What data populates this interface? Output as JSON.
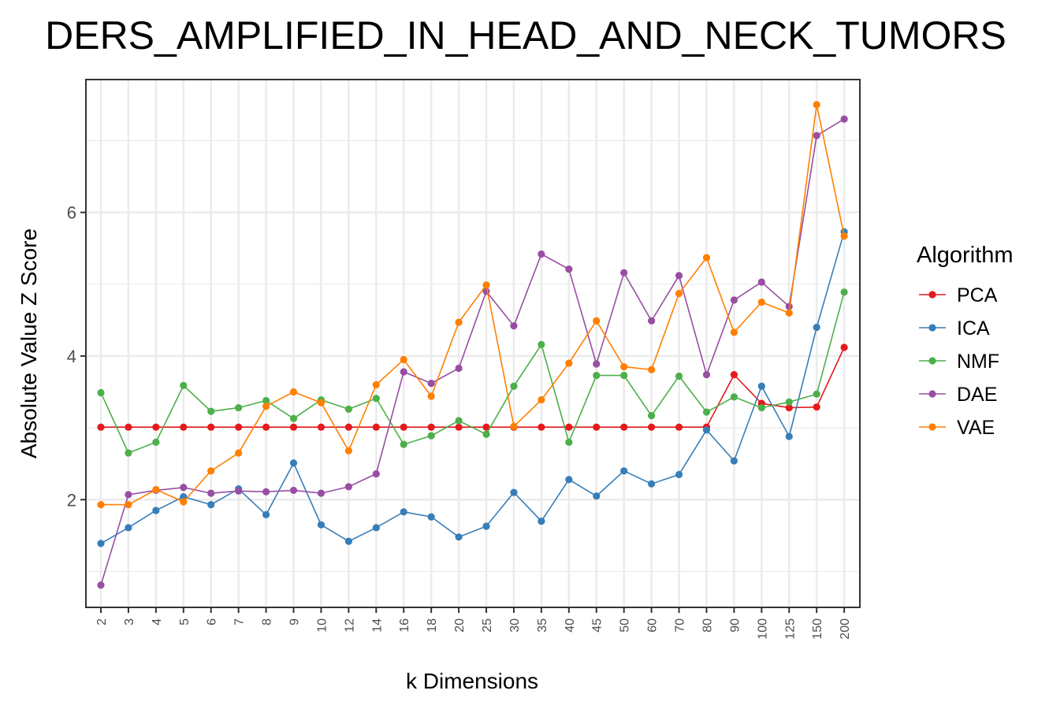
{
  "chart_data": {
    "type": "line",
    "title": "DERS_AMPLIFIED_IN_HEAD_AND_NECK_TUMORS",
    "xlabel": "k Dimensions",
    "ylabel": "Absolute Value Z Score",
    "categories": [
      "2",
      "3",
      "4",
      "5",
      "6",
      "7",
      "8",
      "9",
      "10",
      "12",
      "14",
      "16",
      "18",
      "20",
      "25",
      "30",
      "35",
      "40",
      "45",
      "50",
      "60",
      "70",
      "80",
      "90",
      "100",
      "125",
      "150",
      "200"
    ],
    "ylim": [
      0.5,
      7.85
    ],
    "yticks": [
      2,
      4,
      6
    ],
    "grid": true,
    "legend": {
      "title": "Algorithm",
      "position": "right"
    },
    "series": [
      {
        "name": "PCA",
        "color": "#e41a1c",
        "values": [
          3.01,
          3.01,
          3.01,
          3.01,
          3.01,
          3.01,
          3.01,
          3.01,
          3.01,
          3.01,
          3.01,
          3.01,
          3.01,
          3.01,
          3.01,
          3.01,
          3.01,
          3.01,
          3.01,
          3.01,
          3.01,
          3.01,
          3.01,
          3.74,
          3.34,
          3.28,
          3.29,
          4.12
        ]
      },
      {
        "name": "ICA",
        "color": "#377eb8",
        "values": [
          1.39,
          1.61,
          1.85,
          2.04,
          1.93,
          2.15,
          1.79,
          2.51,
          1.65,
          1.42,
          1.61,
          1.83,
          1.76,
          1.48,
          1.63,
          2.1,
          1.7,
          2.28,
          2.05,
          2.4,
          2.22,
          2.35,
          2.97,
          2.54,
          3.58,
          2.88,
          4.4,
          5.73
        ]
      },
      {
        "name": "NMF",
        "color": "#4daf4a",
        "values": [
          3.49,
          2.65,
          2.8,
          3.59,
          3.23,
          3.28,
          3.38,
          3.13,
          3.39,
          3.26,
          3.41,
          2.77,
          2.89,
          3.1,
          2.91,
          3.58,
          4.16,
          2.8,
          3.73,
          3.73,
          3.17,
          3.72,
          3.22,
          3.43,
          3.28,
          3.36,
          3.47,
          4.89
        ]
      },
      {
        "name": "DAE",
        "color": "#984ea3",
        "values": [
          0.81,
          2.07,
          2.13,
          2.17,
          2.09,
          2.12,
          2.11,
          2.13,
          2.09,
          2.18,
          2.36,
          3.78,
          3.62,
          3.83,
          4.9,
          4.42,
          5.42,
          5.21,
          3.89,
          5.16,
          4.49,
          5.12,
          3.74,
          4.78,
          5.03,
          4.69,
          7.07,
          7.3
        ]
      },
      {
        "name": "VAE",
        "color": "#ff7f00",
        "values": [
          1.93,
          1.93,
          2.14,
          1.97,
          2.4,
          2.65,
          3.3,
          3.5,
          3.35,
          2.68,
          3.6,
          3.95,
          3.44,
          4.47,
          4.99,
          3.02,
          3.39,
          3.9,
          4.49,
          3.85,
          3.81,
          4.87,
          5.37,
          4.33,
          4.75,
          4.6,
          7.5,
          5.67
        ]
      }
    ]
  }
}
